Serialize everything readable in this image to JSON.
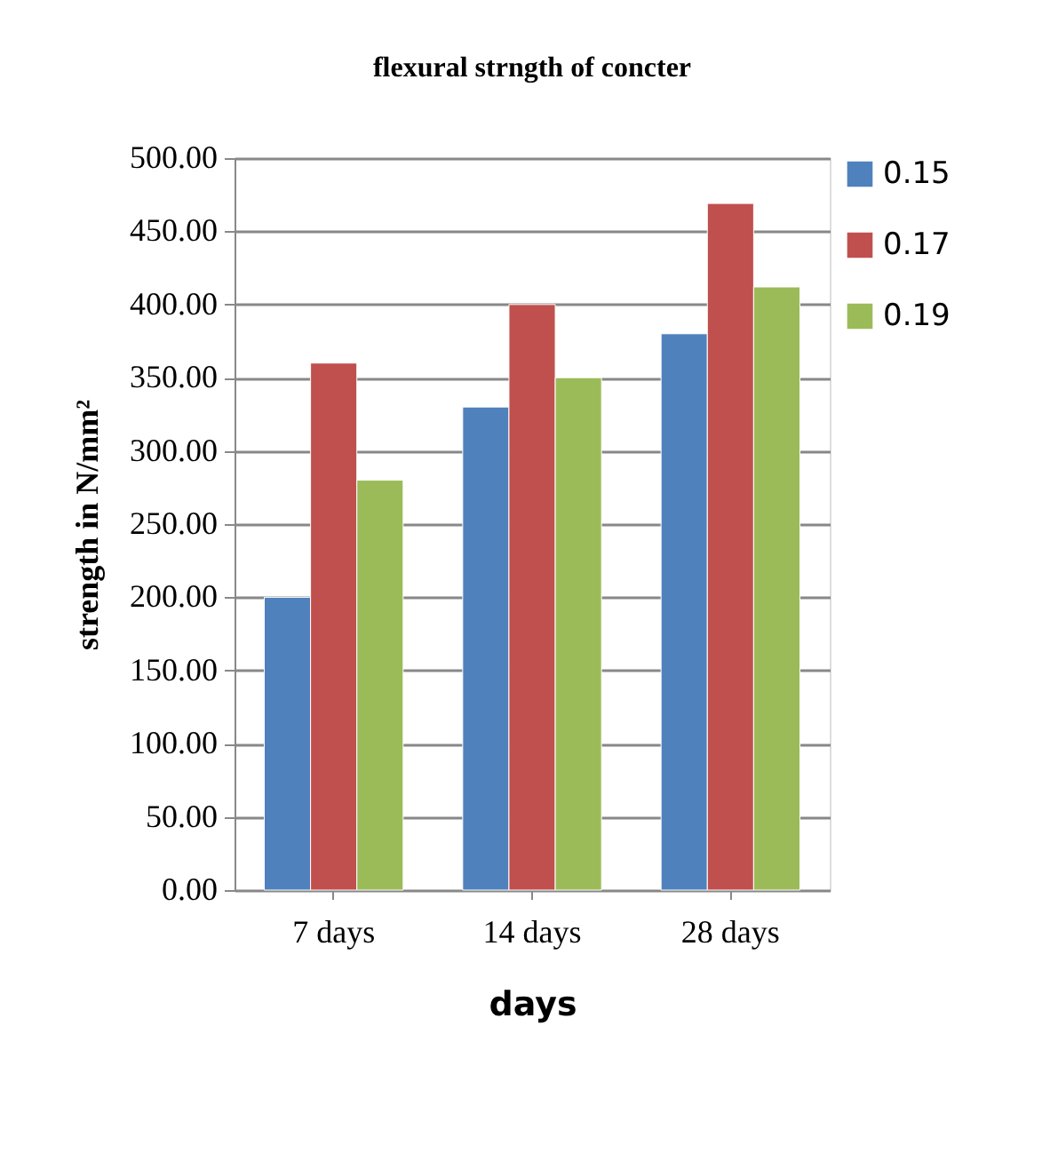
{
  "chart_data": {
    "type": "bar",
    "title": "flexural strngth of concter",
    "xlabel": "days",
    "ylabel": "strength in N/mm²",
    "categories": [
      "7 days",
      "14 days",
      "28 days"
    ],
    "series": [
      {
        "name": "0.15",
        "color": "#4f81bd",
        "values": [
          200,
          330,
          380
        ]
      },
      {
        "name": "0.17",
        "color": "#c0504d",
        "values": [
          360,
          400,
          469
        ]
      },
      {
        "name": "0.19",
        "color": "#9bbb59",
        "values": [
          280,
          350,
          412
        ]
      }
    ],
    "ylim": [
      0,
      500
    ],
    "yticks": [
      {
        "value": 0,
        "label": "0.00"
      },
      {
        "value": 50,
        "label": "50.00"
      },
      {
        "value": 100,
        "label": "100.00"
      },
      {
        "value": 150,
        "label": "150.00"
      },
      {
        "value": 200,
        "label": "200.00"
      },
      {
        "value": 250,
        "label": "250.00"
      },
      {
        "value": 300,
        "label": "300.00"
      },
      {
        "value": 350,
        "label": "350.00"
      },
      {
        "value": 400,
        "label": "400.00"
      },
      {
        "value": 450,
        "label": "450.00"
      },
      {
        "value": 500,
        "label": "500.00"
      }
    ],
    "grid": "y",
    "legend": "right"
  }
}
